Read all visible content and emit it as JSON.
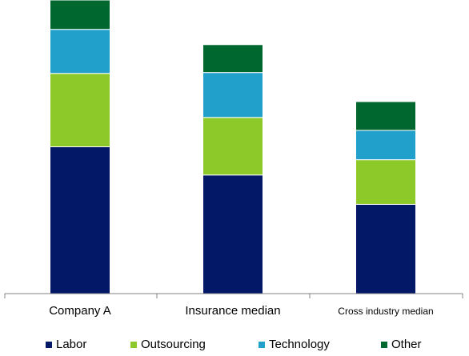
{
  "chart_data": {
    "type": "bar",
    "stacked": true,
    "categories": [
      "Company A",
      "Insurance median",
      "Cross industry median"
    ],
    "series": [
      {
        "name": "Labor",
        "color": "#041868",
        "values": [
          50,
          40.4,
          30.4
        ]
      },
      {
        "name": "Outsourcing",
        "color": "#8DC928",
        "values": [
          25,
          19.6,
          15.2
        ]
      },
      {
        "name": "Technology",
        "color": "#21A0CC",
        "values": [
          15,
          15.3,
          10.0
        ]
      },
      {
        "name": "Other",
        "color": "#00682E",
        "values": [
          10,
          9.5,
          9.8
        ]
      }
    ],
    "title": "",
    "xlabel": "",
    "ylabel": "",
    "ylim": [
      0,
      100
    ],
    "grid": false,
    "legend": "bottom"
  }
}
